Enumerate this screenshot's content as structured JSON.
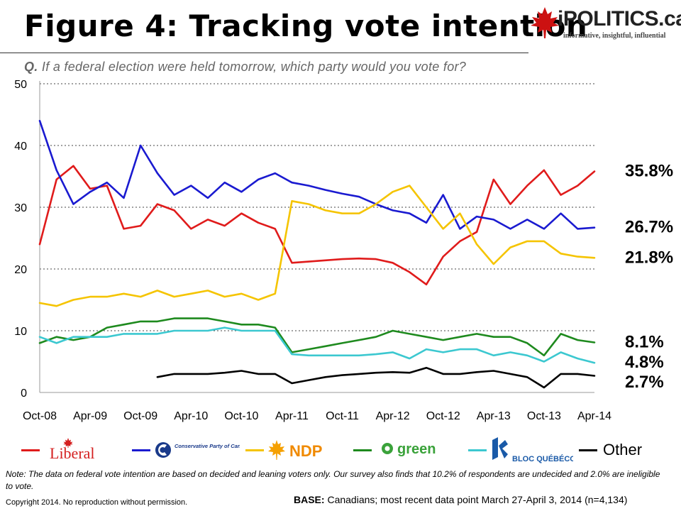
{
  "header": {
    "title": "Figure 4: Tracking vote intention",
    "logo_text": "iPOLITICS.ca",
    "logo_tagline": "informative, insightful, influential",
    "question_prefix": "Q.",
    "question_text": "If a federal election were held tomorrow, which party would you vote for?"
  },
  "legend": {
    "items": [
      {
        "name": "Liberal",
        "label": "Liberal",
        "color": "#e01b1b"
      },
      {
        "name": "Conservative",
        "label": "Conservative Party of Canada",
        "color": "#1a1ad0"
      },
      {
        "name": "NDP",
        "label": "NDP",
        "color": "#f5c400"
      },
      {
        "name": "Green",
        "label": "green",
        "color": "#1e8a1e"
      },
      {
        "name": "Bloc",
        "label": "BLOC QUÉBÉCOIS",
        "color": "#3cc8d0"
      },
      {
        "name": "Other",
        "label": "Other",
        "color": "#000000"
      }
    ]
  },
  "footer": {
    "note": "Note: The data on federal vote intention are based on decided and leaning voters only. Our survey also finds that 10.2% of respondents are undecided and 2.0% are ineligible to vote.",
    "copyright": "Copyright 2014. No reproduction without permission.",
    "base_label": "BASE:",
    "base_text": "Canadians; most recent data point March 27-April 3, 2014 (n=4,134)"
  },
  "chart_data": {
    "type": "line",
    "title": "Figure 4: Tracking vote intention",
    "xlabel": "",
    "ylabel": "",
    "ylim": [
      0,
      50
    ],
    "yticks": [
      0,
      10,
      20,
      30,
      40,
      50
    ],
    "xticks": [
      "Oct-08",
      "Apr-09",
      "Oct-09",
      "Apr-10",
      "Oct-10",
      "Apr-11",
      "Oct-11",
      "Apr-12",
      "Oct-12",
      "Apr-13",
      "Oct-13",
      "Apr-14"
    ],
    "grid": true,
    "x": [
      "Oct-08",
      "Dec-08",
      "Feb-09",
      "Apr-09",
      "Jun-09",
      "Aug-09",
      "Oct-09",
      "Dec-09",
      "Feb-10",
      "Apr-10",
      "Jun-10",
      "Aug-10",
      "Oct-10",
      "Dec-10",
      "Feb-11",
      "Apr-11",
      "Jun-11",
      "Aug-11",
      "Oct-11",
      "Dec-11",
      "Feb-12",
      "Apr-12",
      "Jun-12",
      "Aug-12",
      "Oct-12",
      "Dec-12",
      "Feb-13",
      "Apr-13",
      "Jun-13",
      "Aug-13",
      "Oct-13",
      "Dec-13",
      "Feb-14",
      "Apr-14"
    ],
    "series": [
      {
        "name": "Liberal",
        "color": "#e01b1b",
        "end_label": "35.8%",
        "values": [
          24.0,
          34.5,
          36.7,
          33.0,
          33.5,
          26.5,
          27.0,
          30.5,
          29.5,
          26.5,
          28.0,
          27.0,
          29.0,
          27.5,
          26.5,
          21.0,
          21.2,
          21.4,
          21.6,
          21.7,
          21.6,
          21.0,
          19.5,
          17.5,
          22.0,
          24.5,
          26.0,
          34.5,
          30.5,
          33.5,
          36.0,
          32.0,
          33.5,
          35.8
        ]
      },
      {
        "name": "Conservative",
        "color": "#1a1ad0",
        "end_label": "26.7%",
        "values": [
          44.0,
          36.0,
          30.5,
          32.5,
          34.0,
          31.5,
          40.0,
          35.5,
          32.0,
          33.5,
          31.5,
          34.0,
          32.5,
          34.5,
          35.5,
          34.0,
          33.5,
          32.8,
          32.2,
          31.7,
          30.5,
          29.5,
          29.0,
          27.5,
          32.0,
          26.5,
          28.5,
          28.0,
          26.5,
          28.0,
          26.5,
          29.0,
          26.5,
          26.7
        ]
      },
      {
        "name": "NDP",
        "color": "#f5c400",
        "end_label": "21.8%",
        "values": [
          14.5,
          14.0,
          15.0,
          15.5,
          15.5,
          16.0,
          15.5,
          16.5,
          15.5,
          16.0,
          16.5,
          15.5,
          16.0,
          15.0,
          16.0,
          31.0,
          30.5,
          29.5,
          29.0,
          29.0,
          30.5,
          32.5,
          33.5,
          30.0,
          26.5,
          29.0,
          24.0,
          20.8,
          23.5,
          24.5,
          24.5,
          22.5,
          22.0,
          21.8
        ]
      },
      {
        "name": "Green",
        "color": "#1e8a1e",
        "end_label": "8.1%",
        "values": [
          8.0,
          9.0,
          8.5,
          9.0,
          10.5,
          11.0,
          11.5,
          11.5,
          12.0,
          12.0,
          12.0,
          11.5,
          11.0,
          11.0,
          10.5,
          6.5,
          7.0,
          7.5,
          8.0,
          8.5,
          9.0,
          10.0,
          9.5,
          9.0,
          8.5,
          9.0,
          9.5,
          9.0,
          9.0,
          8.0,
          6.0,
          9.5,
          8.5,
          8.1
        ]
      },
      {
        "name": "Bloc",
        "color": "#3cc8d0",
        "end_label": "4.8%",
        "values": [
          9.0,
          8.0,
          9.0,
          9.0,
          9.0,
          9.5,
          9.5,
          9.5,
          10.0,
          10.0,
          10.0,
          10.5,
          10.0,
          10.0,
          10.0,
          6.2,
          6.0,
          6.0,
          6.0,
          6.0,
          6.2,
          6.5,
          5.5,
          7.0,
          6.5,
          7.0,
          7.0,
          6.0,
          6.5,
          6.0,
          5.0,
          6.5,
          5.5,
          4.8
        ]
      },
      {
        "name": "Other",
        "color": "#000000",
        "end_label": "2.7%",
        "x_start": "Dec-09",
        "values": [
          null,
          null,
          null,
          null,
          null,
          null,
          null,
          2.5,
          3.0,
          3.0,
          3.0,
          3.2,
          3.5,
          3.0,
          3.0,
          1.5,
          2.0,
          2.5,
          2.8,
          3.0,
          3.2,
          3.3,
          3.2,
          4.0,
          3.0,
          3.0,
          3.3,
          3.5,
          3.0,
          2.5,
          0.8,
          3.0,
          3.0,
          2.7
        ]
      }
    ]
  }
}
